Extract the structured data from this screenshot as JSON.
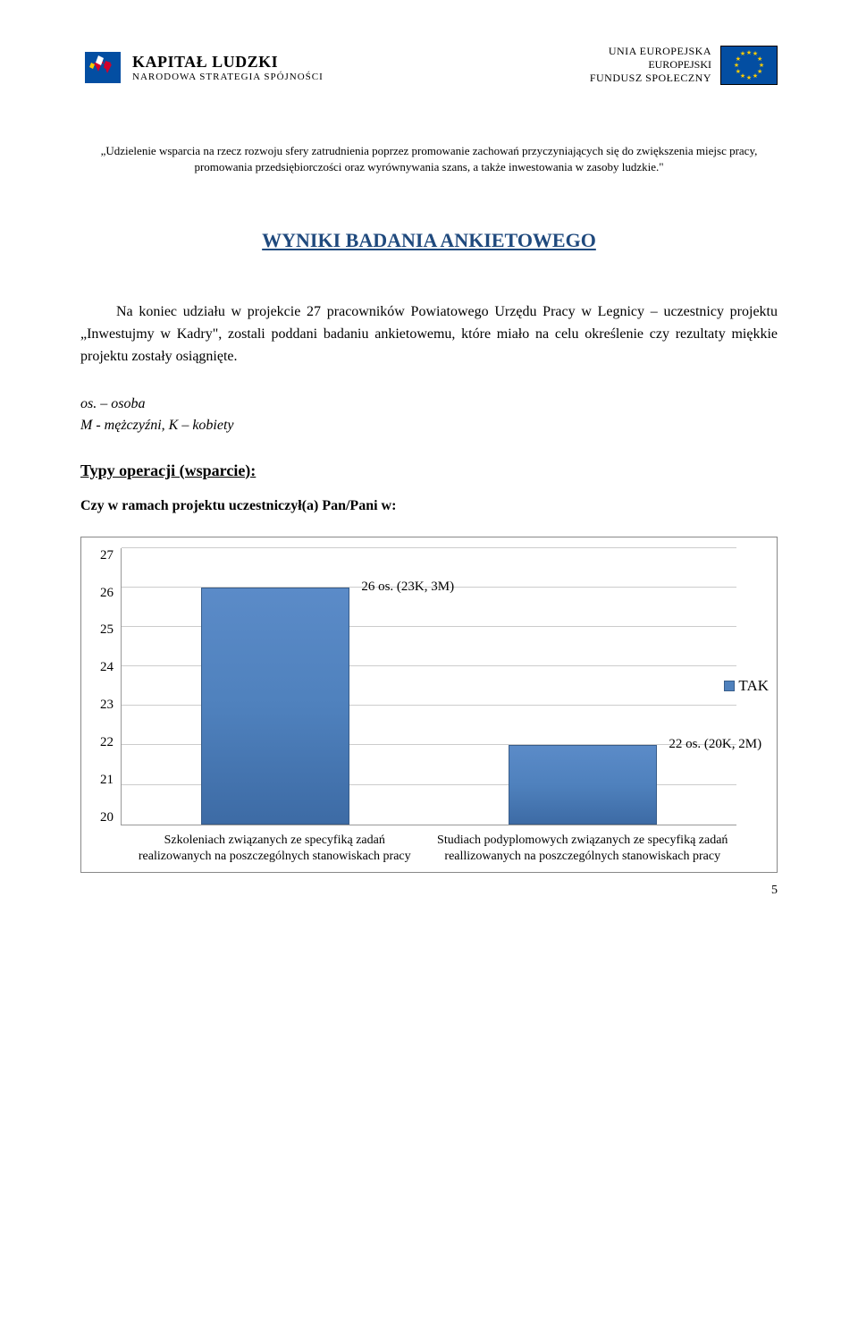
{
  "header": {
    "left_logo": {
      "title": "KAPITAŁ LUDZKI",
      "subtitle": "NARODOWA STRATEGIA SPÓJNOŚCI"
    },
    "right_logo": {
      "line1": "UNIA EUROPEJSKA",
      "line2": "EUROPEJSKI",
      "line3": "FUNDUSZ SPOŁECZNY"
    }
  },
  "quote": "„Udzielenie wsparcia na rzecz rozwoju sfery zatrudnienia poprzez promowanie zachowań przyczyniających się do zwiększenia miejsc pracy, promowania przedsiębiorczości oraz wyrównywania szans, a także inwestowania w zasoby ludzkie.\"",
  "heading": "WYNIKI BADANIA ANKIETOWEGO",
  "body_paragraph": "Na koniec udziału w projekcie 27 pracowników Powiatowego Urzędu Pracy w Legnicy – uczestnicy projektu „Inwestujmy w Kadry\", zostali poddani badaniu ankietowemu, które miało na celu określenie czy rezultaty miękkie projektu zostały osiągnięte.",
  "abbrev_line1": "os. – osoba",
  "abbrev_line2": "M - mężczyźni, K – kobiety",
  "section_heading": "Typy operacji (wsparcie):",
  "question": "Czy w ramach projektu uczestniczył(a) Pan/Pani w:",
  "chart": {
    "type": "bar",
    "ylim": [
      20,
      27
    ],
    "ytick_step": 1,
    "yticks": [
      "27",
      "26",
      "25",
      "24",
      "23",
      "22",
      "21",
      "20"
    ],
    "bars": [
      {
        "value": 26,
        "label": "26 os. (23K, 3M)"
      },
      {
        "value": 22,
        "label": "22 os. (20K, 2M)"
      }
    ],
    "bar_color": "#4f81bd",
    "bar_border": "#385d8a",
    "grid_color": "#cccccc",
    "background_color": "#ffffff",
    "chart_border_color": "#888888",
    "legend_label": "TAK",
    "categories": [
      "Szkoleniach związanych ze specyfiką zadań realizowanych na poszczególnych stanowiskach pracy",
      "Studiach podyplomowych związanych ze specyfiką zadań reallizowanych na poszczególnych stanowiskach pracy"
    ],
    "label_fontsize": 15,
    "axis_fontsize": 15
  },
  "page_number": "5"
}
